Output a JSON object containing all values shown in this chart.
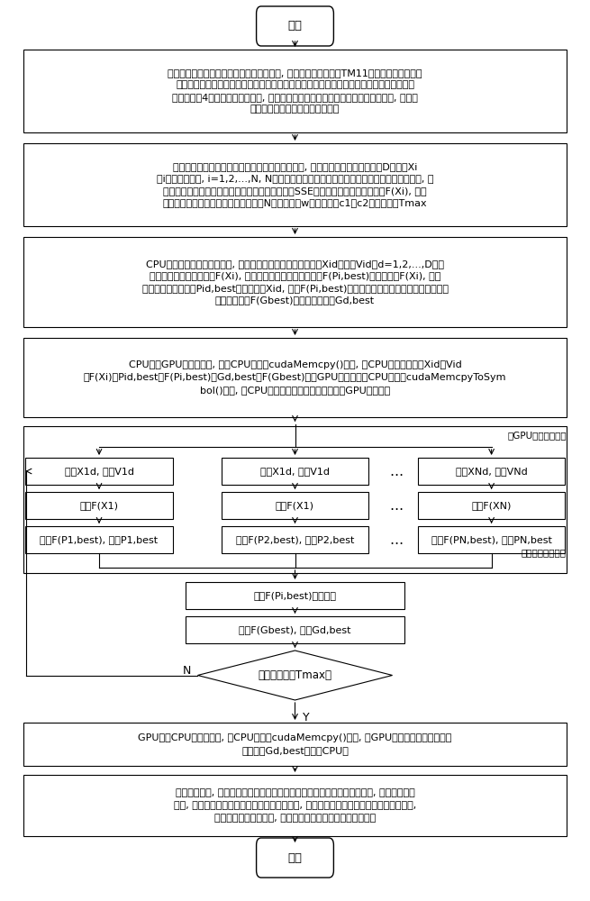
{
  "bg_color": "#ffffff",
  "font_name": "DejaVu Sans",
  "start_text": "开始",
  "end_text": "结束",
  "box1_text": "构建圆形微带天线谐振频率的神经网络模型, 包括将圆形微带天线TM11模式下谐振频率的神\n经网络训练样本和测试样本（每个样本包含贴片半径、介质基片厚度、相对介电常数和实测\n谐振频率这4个数据）归一化处理, 确定神经网络的输入层、隐层和输出层的节点数, 确定神\n经网络的隐层和输出层的激活函数",
  "box2_text": "构建圆形微带天线谐振频率的粒子群神经网络模型, 包括将每个粒子编码成一个D维向量Xi\n（i代表粒子编号, i=1,2,...,N, N为粒子群中的粒子数目）代表一个神经网络的所有权阈值, 每\n个神经网络的归一化训练样本的输出误差平方和（SSE）即为对应粒子的适应度值F(Xi), 设定\n粒子群算法中的下列参数值：粒子数目N、惯性权重w、学习因子c1和c2、训练次数Tmax",
  "box3_text": "CPU端初始化粒子群神经网络, 包括随机初始化每个粒子的位置Xid和速度Vid（d=1,2,...,D），\n计算每个粒子的适应度值F(Xi), 每个粒子的个体最优适应度值F(Pi,best)初始值设为F(Xi), 每个\n粒子的个体最优位置Pid,best初始值设为Xid, 所有F(Pi,best)的最小值及其对应的位置分别设为全局\n最优适应度值F(Gbest)和全局最优位置Gd,best",
  "box4_text": "CPU端到GPU端数据传递, 包括CPU端调用cudaMemcpy()函数, 将CPU端的粒子数据Xid、Vid\n、F(Xi)、Pid,best、F(Pi,best)、Gd,best、F(Gbest)传至GPU全局内存；CPU端调用cudaMemcpyToSym\nbol()函数, 将CPU端的归一化训练样本数据传至GPU常量内存",
  "gpu_label": "（GPU线程级并行）",
  "col1_r1": "更新X1d, 更新V1d",
  "col2_r1": "更新X1d, 更新V1d",
  "col3_r1": "更新XNd, 更新VNd",
  "col1_r2": "计算F(X1)",
  "col2_r2": "计算F(X1)",
  "col3_r2": "计算F(XN)",
  "col1_r3": "更新F(P1,best), 更新P1,best",
  "col2_r3": "更新F(P2,best), 更新P2,best",
  "col3_r3": "更新F(PN,best), 更新PN,best",
  "reduce_label": "（并行规约算法）",
  "box5_text": "所有F(Pi,best)的最小值",
  "box6_text": "更新F(Gbest), 更新Gd,best",
  "diamond_text": "达到迭代次数Tmax？",
  "label_n": "N",
  "label_y": "Y",
  "box7_text": "GPU端到CPU端数据传递, 即CPU端调用cudaMemcpy()函数, 将GPU端训练好的神经网络最\n优权阈值Gd,best传回至CPU端",
  "box8_text": "分析建模性能, 包括将归一化的训练样本和测试样本带入训练好的神经网络, 将网络输出反\n归一, 得到圆形微带天线谐振频率的网络输出值, 求出网络输出值与实测值的绝对误差总和,\n记录程序运行的总时间, 对建模速度和建模误差作性能分析。"
}
